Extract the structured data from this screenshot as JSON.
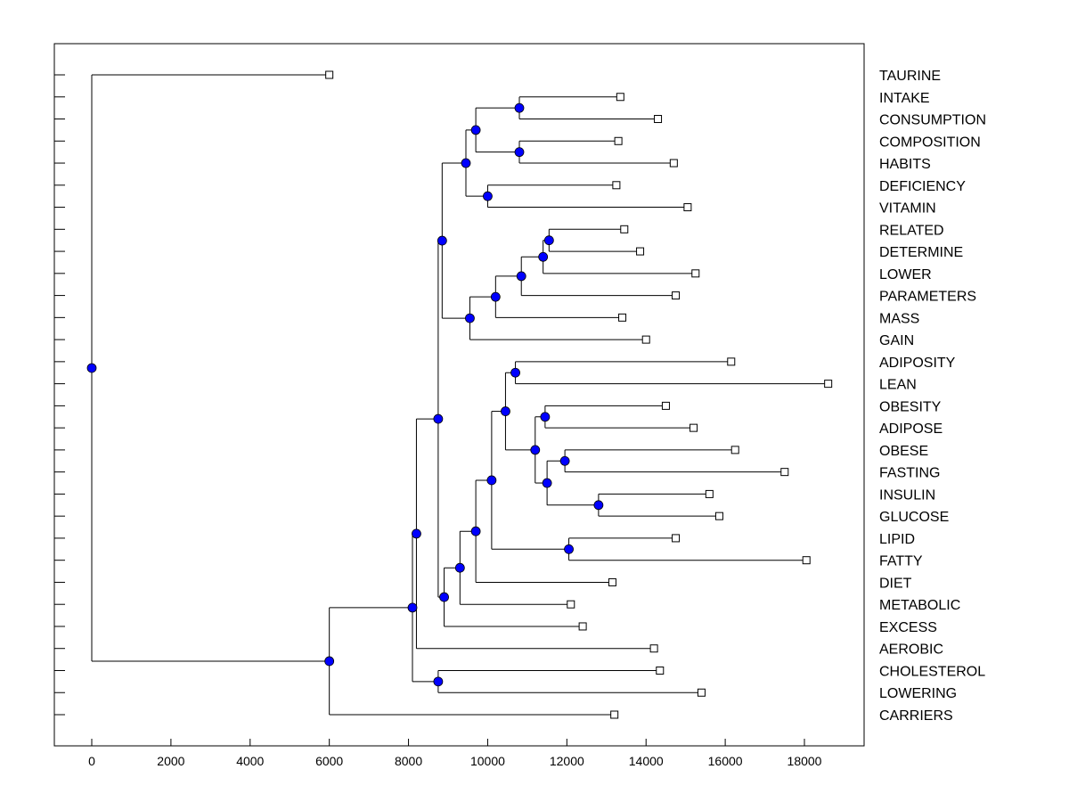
{
  "chart_data": {
    "type": "dendrogram",
    "title": "",
    "xlabel": "",
    "ylabel": "",
    "xlim": [
      -1000,
      19000
    ],
    "x_ticks": [
      0,
      2000,
      4000,
      6000,
      8000,
      10000,
      12000,
      14000,
      16000,
      18000
    ],
    "x_tick_labels": [
      "0",
      "2000",
      "4000",
      "6000",
      "8000",
      "10000",
      "12000",
      "14000",
      "16000",
      "18000"
    ],
    "node_color": "#0000ff",
    "leaf_marker_color": "#ffffff",
    "leaves": [
      {
        "label": "TAURINE",
        "value": 6000
      },
      {
        "label": "INTAKE",
        "value": 13350
      },
      {
        "label": "CONSUMPTION",
        "value": 14300
      },
      {
        "label": "COMPOSITION",
        "value": 13300
      },
      {
        "label": "HABITS",
        "value": 14700
      },
      {
        "label": "DEFICIENCY",
        "value": 13250
      },
      {
        "label": "VITAMIN",
        "value": 15050
      },
      {
        "label": "RELATED",
        "value": 13450
      },
      {
        "label": "DETERMINE",
        "value": 13850
      },
      {
        "label": "LOWER",
        "value": 15250
      },
      {
        "label": "PARAMETERS",
        "value": 14750
      },
      {
        "label": "MASS",
        "value": 13400
      },
      {
        "label": "GAIN",
        "value": 14000
      },
      {
        "label": "ADIPOSITY",
        "value": 16150
      },
      {
        "label": "LEAN",
        "value": 18600
      },
      {
        "label": "OBESITY",
        "value": 14500
      },
      {
        "label": "ADIPOSE",
        "value": 15200
      },
      {
        "label": "OBESE",
        "value": 16250
      },
      {
        "label": "FASTING",
        "value": 17500
      },
      {
        "label": "INSULIN",
        "value": 15600
      },
      {
        "label": "GLUCOSE",
        "value": 15850
      },
      {
        "label": "LIPID",
        "value": 14750
      },
      {
        "label": "FATTY",
        "value": 18050
      },
      {
        "label": "DIET",
        "value": 13150
      },
      {
        "label": "METABOLIC",
        "value": 12100
      },
      {
        "label": "EXCESS",
        "value": 12400
      },
      {
        "label": "AEROBIC",
        "value": 14200
      },
      {
        "label": "CHOLESTEROL",
        "value": 14350
      },
      {
        "label": "LOWERING",
        "value": 15400
      },
      {
        "label": "CARRIERS",
        "value": 13200
      }
    ],
    "merges": [
      {
        "id": "n_intake_consumption",
        "value": 10800,
        "children": [
          "INTAKE",
          "CONSUMPTION"
        ]
      },
      {
        "id": "n_composition_habits",
        "value": 10800,
        "children": [
          "COMPOSITION",
          "HABITS"
        ]
      },
      {
        "id": "n_ichc",
        "value": 9700,
        "children": [
          "n_intake_consumption",
          "n_composition_habits"
        ]
      },
      {
        "id": "n_deficiency_vitamin",
        "value": 10000,
        "children": [
          "DEFICIENCY",
          "VITAMIN"
        ]
      },
      {
        "id": "n_diet_habits_group",
        "value": 9450,
        "children": [
          "n_ichc",
          "n_deficiency_vitamin"
        ]
      },
      {
        "id": "n_related_determine",
        "value": 11550,
        "children": [
          "RELATED",
          "DETERMINE"
        ]
      },
      {
        "id": "n_rd_lower",
        "value": 11400,
        "children": [
          "n_related_determine",
          "LOWER"
        ]
      },
      {
        "id": "n_rdl_parameters",
        "value": 10850,
        "children": [
          "n_rd_lower",
          "PARAMETERS"
        ]
      },
      {
        "id": "n_rdlp_mass",
        "value": 10200,
        "children": [
          "n_rdl_parameters",
          "MASS"
        ]
      },
      {
        "id": "n_rdlpm_gain",
        "value": 9550,
        "children": [
          "n_rdlp_mass",
          "GAIN"
        ]
      },
      {
        "id": "n_upper_block",
        "value": 8850,
        "children": [
          "n_diet_habits_group",
          "n_rdlpm_gain"
        ]
      },
      {
        "id": "n_adiposity_lean",
        "value": 10700,
        "children": [
          "ADIPOSITY",
          "LEAN"
        ]
      },
      {
        "id": "n_obesity_adipose",
        "value": 11450,
        "children": [
          "OBESITY",
          "ADIPOSE"
        ]
      },
      {
        "id": "n_obese_fasting",
        "value": 11950,
        "children": [
          "OBESE",
          "FASTING"
        ]
      },
      {
        "id": "n_insulin_glucose",
        "value": 12800,
        "children": [
          "INSULIN",
          "GLUCOSE"
        ]
      },
      {
        "id": "n_ofig",
        "value": 11500,
        "children": [
          "n_obese_fasting",
          "n_insulin_glucose"
        ]
      },
      {
        "id": "n_oa_ofig",
        "value": 11200,
        "children": [
          "n_obesity_adipose",
          "n_ofig"
        ]
      },
      {
        "id": "n_al_rest",
        "value": 10450,
        "children": [
          "n_adiposity_lean",
          "n_oa_ofig"
        ]
      },
      {
        "id": "n_lipid_fatty",
        "value": 12050,
        "children": [
          "LIPID",
          "FATTY"
        ]
      },
      {
        "id": "n_obesity_block",
        "value": 10100,
        "children": [
          "n_al_rest",
          "n_lipid_fatty"
        ]
      },
      {
        "id": "n_ob_diet",
        "value": 9700,
        "children": [
          "n_obesity_block",
          "DIET"
        ]
      },
      {
        "id": "n_obd_metabolic",
        "value": 9300,
        "children": [
          "n_ob_diet",
          "METABOLIC"
        ]
      },
      {
        "id": "n_obdm_excess",
        "value": 8900,
        "children": [
          "n_obd_metabolic",
          "EXCESS"
        ]
      },
      {
        "id": "n_upper_lower",
        "value": 8750,
        "children": [
          "n_upper_block",
          "n_obdm_excess"
        ]
      },
      {
        "id": "n_ul_aerobic",
        "value": 8200,
        "children": [
          "n_upper_lower",
          "AEROBIC"
        ]
      },
      {
        "id": "n_cholesterol_lowering",
        "value": 8750,
        "children": [
          "CHOLESTEROL",
          "LOWERING"
        ]
      },
      {
        "id": "n_main_cl",
        "value": 8100,
        "children": [
          "n_ul_aerobic",
          "n_cholesterol_lowering"
        ]
      },
      {
        "id": "n_main_carriers",
        "value": 6000,
        "children": [
          "n_main_cl",
          "CARRIERS"
        ]
      },
      {
        "id": "n_root",
        "value": 0,
        "children": [
          "TAURINE",
          "n_main_carriers"
        ]
      }
    ]
  }
}
